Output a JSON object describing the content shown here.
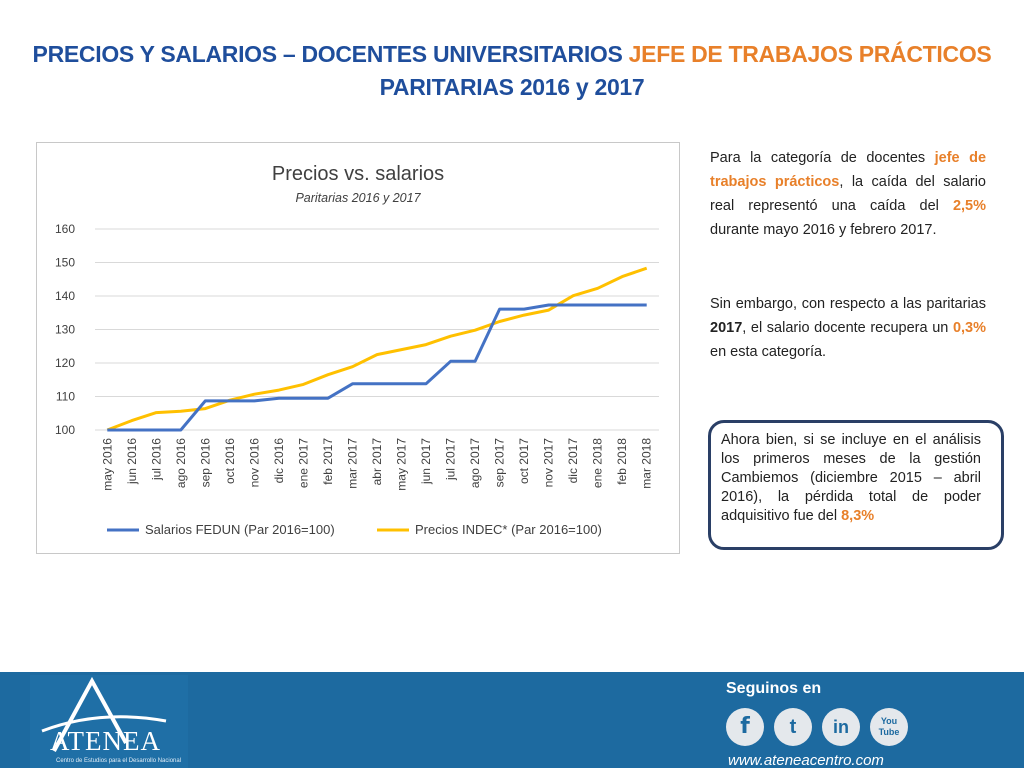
{
  "title": {
    "line1_blue": "PRECIOS Y SALARIOS – DOCENTES UNIVERSITARIOS ",
    "line1_orange": "JEFE DE TRABAJOS PRÁCTICOS",
    "line2": "PARITARIAS 2016 y 2017"
  },
  "chart_data": {
    "type": "line",
    "title": "Precios vs. salarios",
    "subtitle": "Paritarias 2016 y 2017",
    "x": [
      "may 2016",
      "jun 2016",
      "jul 2016",
      "ago 2016",
      "sep 2016",
      "oct 2016",
      "nov 2016",
      "dic 2016",
      "ene 2017",
      "feb 2017",
      "mar 2017",
      "abr 2017",
      "may 2017",
      "jun 2017",
      "jul 2017",
      "ago 2017",
      "sep 2017",
      "oct 2017",
      "nov 2017",
      "dic 2017",
      "ene 2018",
      "feb 2018",
      "mar 2018"
    ],
    "ylim": [
      100,
      160
    ],
    "yticks": [
      100,
      110,
      120,
      130,
      140,
      150,
      160
    ],
    "grid": true,
    "legend_position": "bottom",
    "series": [
      {
        "name": "Salarios FEDUN (Par 2016=100)",
        "color": "#4472c4",
        "values": [
          100,
          100,
          100,
          100,
          108.7,
          108.7,
          108.7,
          109.5,
          109.5,
          109.5,
          113.8,
          113.8,
          113.8,
          113.8,
          120.5,
          120.5,
          136.1,
          136.1,
          137.3,
          137.3,
          137.3,
          137.3,
          137.3
        ]
      },
      {
        "name": "Precios INDEC* (Par 2016=100)",
        "color": "#ffc000",
        "values": [
          100,
          102.8,
          105.2,
          105.6,
          106.4,
          108.9,
          110.7,
          111.9,
          113.6,
          116.5,
          118.9,
          122.5,
          124.0,
          125.5,
          128.0,
          129.8,
          132.4,
          134.3,
          135.8,
          140.1,
          142.3,
          145.8,
          148.3
        ]
      }
    ]
  },
  "text": {
    "p1_a": "Para la categoría de docentes ",
    "p1_b": "jefe de trabajos prácticos",
    "p1_c": ", la caída del salario real representó una caída del ",
    "p1_d": "2,5%",
    "p1_e": " durante mayo 2016 y febrero 2017.",
    "p2_a": "Sin embargo, con respecto a las paritarias ",
    "p2_b": "2017",
    "p2_c": ", el salario docente recupera un ",
    "p2_d": "0,3%",
    "p2_e": " en esta categoría."
  },
  "callout": {
    "a": "Ahora bien, si se incluye en el análisis los primeros meses de la gestión Cambiemos (diciembre 2015 – abril 2016), la pérdida total de poder adquisitivo fue del ",
    "b": "8,3%"
  },
  "footer": {
    "logo": "ATENEA",
    "logo_sub": "Centro de Estudios para el Desarrollo Nacional",
    "follow": "Seguinos en",
    "website": "www.ateneacentro.com",
    "social": [
      {
        "name": "facebook",
        "glyph": "f"
      },
      {
        "name": "twitter",
        "glyph": "t"
      },
      {
        "name": "linkedin",
        "glyph": "in"
      },
      {
        "name": "youtube",
        "glyph": "You Tube"
      }
    ]
  }
}
